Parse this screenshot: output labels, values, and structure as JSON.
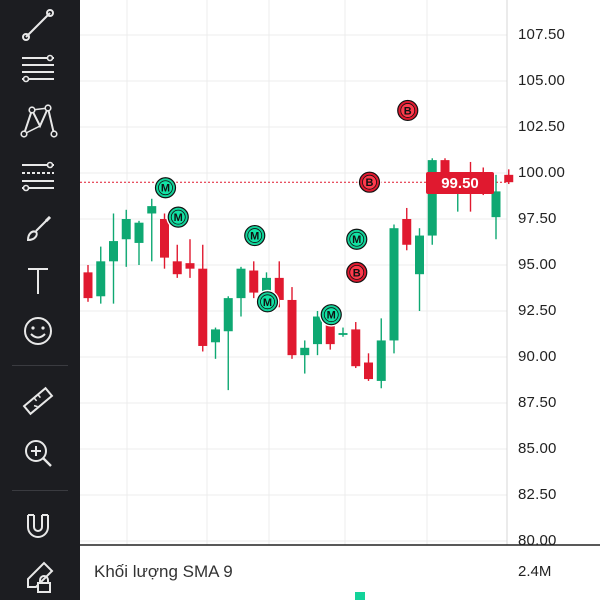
{
  "toolbar": {
    "tools": [
      {
        "name": "trend-line-icon"
      },
      {
        "name": "horizontal-lines-icon"
      },
      {
        "name": "pattern-icon"
      },
      {
        "name": "fib-levels-icon"
      },
      {
        "name": "brush-icon"
      },
      {
        "name": "text-icon"
      },
      {
        "name": "emoji-icon"
      },
      {
        "name": "ruler-icon"
      },
      {
        "name": "zoom-in-icon"
      },
      {
        "name": "magnet-icon"
      },
      {
        "name": "lock-edit-icon"
      }
    ]
  },
  "price_axis": {
    "labels": [
      "107.50",
      "105.00",
      "102.50",
      "100.00",
      "97.50",
      "95.00",
      "92.50",
      "90.00",
      "87.50",
      "85.00",
      "82.50",
      "80.00"
    ]
  },
  "last_price": {
    "label": "99.50",
    "value": 99.5,
    "color": "#e0192f"
  },
  "volume": {
    "label": "Khối lượng SMA 9",
    "axis_value": "2.4M"
  },
  "colors": {
    "up": "#0ea872",
    "down": "#e0192f",
    "marker_m_fill": "#13d39a",
    "marker_b_fill": "#e0192f"
  },
  "chart_data": {
    "type": "candlestick",
    "ylim": [
      80,
      109
    ],
    "candles": [
      {
        "o": 94.6,
        "h": 95.0,
        "l": 93.0,
        "c": 93.2
      },
      {
        "o": 93.3,
        "h": 96.0,
        "l": 92.9,
        "c": 95.2
      },
      {
        "o": 95.2,
        "h": 97.8,
        "l": 92.9,
        "c": 96.3
      },
      {
        "o": 96.4,
        "h": 98.0,
        "l": 94.9,
        "c": 97.5
      },
      {
        "o": 96.2,
        "h": 97.4,
        "l": 95.0,
        "c": 97.3
      },
      {
        "o": 97.8,
        "h": 98.6,
        "l": 95.2,
        "c": 98.2
      },
      {
        "o": 97.5,
        "h": 97.8,
        "l": 94.8,
        "c": 95.4
      },
      {
        "o": 95.2,
        "h": 96.1,
        "l": 94.3,
        "c": 94.5
      },
      {
        "o": 95.1,
        "h": 96.4,
        "l": 94.3,
        "c": 94.8
      },
      {
        "o": 94.8,
        "h": 96.1,
        "l": 90.3,
        "c": 90.6
      },
      {
        "o": 90.8,
        "h": 91.6,
        "l": 89.9,
        "c": 91.5
      },
      {
        "o": 91.4,
        "h": 93.3,
        "l": 88.2,
        "c": 93.2
      },
      {
        "o": 93.2,
        "h": 94.9,
        "l": 92.2,
        "c": 94.8
      },
      {
        "o": 94.7,
        "h": 95.2,
        "l": 93.2,
        "c": 93.5
      },
      {
        "o": 93.4,
        "h": 94.6,
        "l": 92.8,
        "c": 94.3
      },
      {
        "o": 94.3,
        "h": 95.2,
        "l": 92.7,
        "c": 93.1
      },
      {
        "o": 93.1,
        "h": 93.8,
        "l": 89.9,
        "c": 90.1
      },
      {
        "o": 90.1,
        "h": 90.9,
        "l": 89.1,
        "c": 90.5
      },
      {
        "o": 90.7,
        "h": 92.5,
        "l": 90.1,
        "c": 92.2
      },
      {
        "o": 91.9,
        "h": 92.8,
        "l": 90.4,
        "c": 90.7
      },
      {
        "o": 91.2,
        "h": 91.6,
        "l": 91.1,
        "c": 91.3
      },
      {
        "o": 91.5,
        "h": 91.9,
        "l": 89.4,
        "c": 89.5
      },
      {
        "o": 89.7,
        "h": 90.2,
        "l": 88.7,
        "c": 88.8
      },
      {
        "o": 88.7,
        "h": 92.1,
        "l": 88.3,
        "c": 90.9
      },
      {
        "o": 90.9,
        "h": 97.2,
        "l": 90.2,
        "c": 97.0
      },
      {
        "o": 97.5,
        "h": 98.1,
        "l": 95.8,
        "c": 96.1
      },
      {
        "o": 94.5,
        "h": 97.0,
        "l": 92.5,
        "c": 96.6
      },
      {
        "o": 96.6,
        "h": 100.8,
        "l": 96.1,
        "c": 100.7
      },
      {
        "o": 100.7,
        "h": 100.8,
        "l": 99.3,
        "c": 99.8
      },
      {
        "o": 99.7,
        "h": 100.0,
        "l": 97.9,
        "c": 99.8
      },
      {
        "o": 99.8,
        "h": 100.6,
        "l": 97.9,
        "c": 99.4
      },
      {
        "o": 99.5,
        "h": 100.3,
        "l": 98.8,
        "c": 99.0
      },
      {
        "o": 97.6,
        "h": 99.9,
        "l": 96.4,
        "c": 99.0
      },
      {
        "o": 99.9,
        "h": 100.2,
        "l": 99.4,
        "c": 99.5
      }
    ],
    "markers": [
      {
        "label": "M",
        "type": "M",
        "index": 6,
        "y": 99.2
      },
      {
        "label": "M",
        "type": "M",
        "index": 7,
        "y": 97.6
      },
      {
        "label": "M",
        "type": "M",
        "index": 13,
        "y": 96.6
      },
      {
        "label": "M",
        "type": "M",
        "index": 14,
        "y": 93.0
      },
      {
        "label": "M",
        "type": "M",
        "index": 19,
        "y": 92.3
      },
      {
        "label": "M",
        "type": "M",
        "index": 21,
        "y": 96.4
      },
      {
        "label": "B",
        "type": "B",
        "index": 21,
        "y": 94.6
      },
      {
        "label": "B",
        "type": "B",
        "index": 22,
        "y": 99.5
      },
      {
        "label": "B",
        "type": "B",
        "index": 25,
        "y": 103.4
      }
    ]
  }
}
